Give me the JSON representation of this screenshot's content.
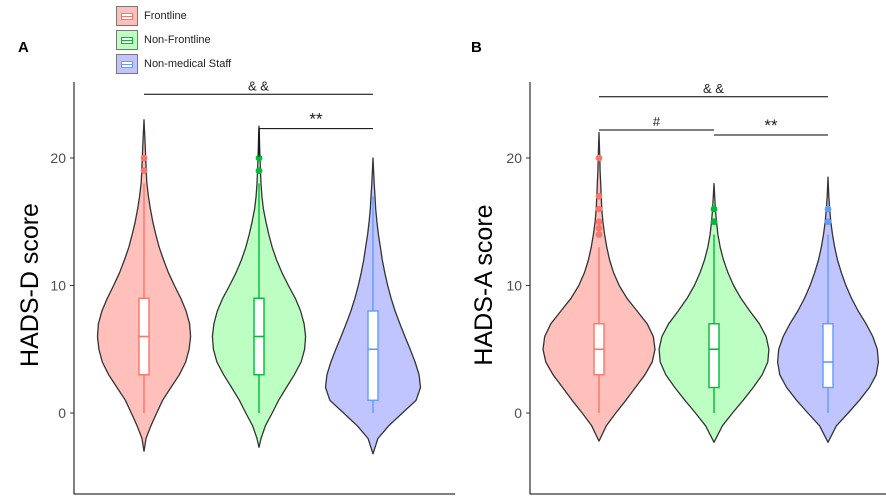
{
  "legend": {
    "items": [
      {
        "label": "Frontline",
        "color": "#F8766D",
        "fill": "#FFBFBB"
      },
      {
        "label": "Non-Frontline",
        "color": "#00BA38",
        "fill": "#BDFFC2"
      },
      {
        "label": "Non-medical Staff",
        "color": "#619CFF",
        "fill": "#C0C4FF"
      }
    ]
  },
  "chart_data": [
    {
      "type": "violin",
      "panel_label": "A",
      "ylabel": "HADS-D score",
      "yticks": [
        0,
        10,
        20
      ],
      "ylim": [
        -6.5,
        26.5
      ],
      "groups": [
        {
          "name": "Frontline",
          "color": "#F8766D",
          "fill": "#FFBFBB",
          "range": [
            -3,
            23
          ],
          "profile": [
            [
              -3,
              0
            ],
            [
              -2,
              0.04
            ],
            [
              -1,
              0.14
            ],
            [
              0,
              0.26
            ],
            [
              1,
              0.38
            ],
            [
              2,
              0.55
            ],
            [
              3,
              0.72
            ],
            [
              4,
              0.85
            ],
            [
              5,
              0.92
            ],
            [
              6,
              0.95
            ],
            [
              7,
              0.93
            ],
            [
              8,
              0.86
            ],
            [
              9,
              0.75
            ],
            [
              10,
              0.62
            ],
            [
              11,
              0.5
            ],
            [
              12,
              0.4
            ],
            [
              13,
              0.31
            ],
            [
              14,
              0.24
            ],
            [
              15,
              0.18
            ],
            [
              16,
              0.13
            ],
            [
              17,
              0.09
            ],
            [
              18,
              0.06
            ],
            [
              19,
              0.045
            ],
            [
              20,
              0.035
            ],
            [
              21,
              0.025
            ],
            [
              22,
              0.012
            ],
            [
              23,
              0
            ]
          ],
          "box": {
            "min": 0,
            "q1": 3,
            "median": 6,
            "q3": 9,
            "max": 18
          },
          "outliers": [
            19,
            20
          ]
        },
        {
          "name": "Non-Frontline",
          "color": "#00BA38",
          "fill": "#BDFFC2",
          "range": [
            -2.7,
            22.5
          ],
          "profile": [
            [
              -2.7,
              0
            ],
            [
              -2,
              0.04
            ],
            [
              -1,
              0.13
            ],
            [
              0,
              0.27
            ],
            [
              1,
              0.4
            ],
            [
              2,
              0.56
            ],
            [
              3,
              0.72
            ],
            [
              4,
              0.86
            ],
            [
              5,
              0.93
            ],
            [
              6,
              0.95
            ],
            [
              7,
              0.92
            ],
            [
              8,
              0.85
            ],
            [
              9,
              0.74
            ],
            [
              10,
              0.6
            ],
            [
              11,
              0.47
            ],
            [
              12,
              0.36
            ],
            [
              13,
              0.27
            ],
            [
              14,
              0.2
            ],
            [
              15,
              0.14
            ],
            [
              16,
              0.09
            ],
            [
              17,
              0.06
            ],
            [
              18,
              0.04
            ],
            [
              19,
              0.03
            ],
            [
              20,
              0.02
            ],
            [
              21,
              0.012
            ],
            [
              22,
              0.006
            ],
            [
              22.5,
              0
            ]
          ],
          "box": {
            "min": 0,
            "q1": 3,
            "median": 6,
            "q3": 9,
            "max": 18
          },
          "outliers": [
            19,
            20
          ]
        },
        {
          "name": "Non-medical Staff",
          "color": "#619CFF",
          "fill": "#C0C4FF",
          "range": [
            -3.2,
            20
          ],
          "profile": [
            [
              -3.2,
              0
            ],
            [
              -2,
              0.1
            ],
            [
              -1,
              0.32
            ],
            [
              0,
              0.6
            ],
            [
              1,
              0.88
            ],
            [
              2,
              0.97
            ],
            [
              3,
              0.94
            ],
            [
              4,
              0.86
            ],
            [
              5,
              0.76
            ],
            [
              6,
              0.65
            ],
            [
              7,
              0.55
            ],
            [
              8,
              0.45
            ],
            [
              9,
              0.37
            ],
            [
              10,
              0.3
            ],
            [
              11,
              0.24
            ],
            [
              12,
              0.19
            ],
            [
              13,
              0.15
            ],
            [
              14,
              0.11
            ],
            [
              15,
              0.08
            ],
            [
              16,
              0.055
            ],
            [
              17,
              0.04
            ],
            [
              18,
              0.025
            ],
            [
              19,
              0.012
            ],
            [
              20,
              0
            ]
          ],
          "box": {
            "min": 0,
            "q1": 1,
            "median": 5,
            "q3": 8,
            "max": 17
          },
          "outliers": []
        }
      ],
      "annotations": [
        {
          "text": "& &",
          "from": 0,
          "to": 2,
          "y": 25,
          "drop": 0,
          "size": 13
        },
        {
          "text": "**",
          "from": 1,
          "to": 2,
          "y": 22.3,
          "drop": 2.2,
          "size": 17
        }
      ]
    },
    {
      "type": "violin",
      "panel_label": "B",
      "ylabel": "HADS-A score",
      "yticks": [
        0,
        10,
        20
      ],
      "ylim": [
        -6.5,
        26.5
      ],
      "groups": [
        {
          "name": "Frontline",
          "color": "#F8766D",
          "fill": "#FFBFBB",
          "range": [
            -2.2,
            22
          ],
          "profile": [
            [
              -2.2,
              0
            ],
            [
              -1,
              0.13
            ],
            [
              0,
              0.3
            ],
            [
              1,
              0.48
            ],
            [
              2,
              0.65
            ],
            [
              3,
              0.82
            ],
            [
              4,
              0.95
            ],
            [
              5,
              1.0
            ],
            [
              6,
              0.97
            ],
            [
              7,
              0.86
            ],
            [
              8,
              0.68
            ],
            [
              9,
              0.5
            ],
            [
              10,
              0.36
            ],
            [
              11,
              0.26
            ],
            [
              12,
              0.19
            ],
            [
              13,
              0.14
            ],
            [
              14,
              0.1
            ],
            [
              15,
              0.07
            ],
            [
              16,
              0.05
            ],
            [
              17,
              0.04
            ],
            [
              18,
              0.03
            ],
            [
              19,
              0.02
            ],
            [
              20,
              0.015
            ],
            [
              21,
              0.008
            ],
            [
              22,
              0
            ]
          ],
          "box": {
            "min": 0,
            "q1": 3,
            "median": 5,
            "q3": 7,
            "max": 13
          },
          "outliers": [
            14,
            14.5,
            15,
            16,
            17,
            20
          ]
        },
        {
          "name": "Non-Frontline",
          "color": "#00BA38",
          "fill": "#BDFFC2",
          "range": [
            -2.3,
            18
          ],
          "profile": [
            [
              -2.3,
              0
            ],
            [
              -1,
              0.15
            ],
            [
              0,
              0.33
            ],
            [
              1,
              0.52
            ],
            [
              2,
              0.7
            ],
            [
              3,
              0.86
            ],
            [
              4,
              0.96
            ],
            [
              5,
              0.98
            ],
            [
              6,
              0.93
            ],
            [
              7,
              0.81
            ],
            [
              8,
              0.64
            ],
            [
              9,
              0.48
            ],
            [
              10,
              0.35
            ],
            [
              11,
              0.25
            ],
            [
              12,
              0.17
            ],
            [
              13,
              0.11
            ],
            [
              14,
              0.07
            ],
            [
              15,
              0.045
            ],
            [
              16,
              0.025
            ],
            [
              17,
              0.012
            ],
            [
              18,
              0
            ]
          ],
          "box": {
            "min": 0,
            "q1": 2,
            "median": 5,
            "q3": 7,
            "max": 14
          },
          "outliers": [
            15,
            16
          ]
        },
        {
          "name": "Non-medical Staff",
          "color": "#619CFF",
          "fill": "#C0C4FF",
          "range": [
            -2.3,
            18.5
          ],
          "profile": [
            [
              -2.3,
              0
            ],
            [
              -1,
              0.15
            ],
            [
              0,
              0.36
            ],
            [
              1,
              0.56
            ],
            [
              2,
              0.74
            ],
            [
              3,
              0.86
            ],
            [
              4,
              0.9
            ],
            [
              5,
              0.88
            ],
            [
              6,
              0.8
            ],
            [
              7,
              0.68
            ],
            [
              8,
              0.54
            ],
            [
              9,
              0.42
            ],
            [
              10,
              0.32
            ],
            [
              11,
              0.24
            ],
            [
              12,
              0.17
            ],
            [
              13,
              0.12
            ],
            [
              14,
              0.08
            ],
            [
              15,
              0.05
            ],
            [
              16,
              0.03
            ],
            [
              17,
              0.015
            ],
            [
              18.5,
              0
            ]
          ],
          "box": {
            "min": 0,
            "q1": 2,
            "median": 4,
            "q3": 7,
            "max": 14
          },
          "outliers": [
            15,
            16
          ]
        }
      ],
      "annotations": [
        {
          "text": "& &",
          "from": 0,
          "to": 2,
          "y": 24.8,
          "drop": 0,
          "size": 13
        },
        {
          "text": "#",
          "from": 0,
          "to": 1,
          "y": 22.2,
          "drop": 0,
          "size": 13
        },
        {
          "text": "**",
          "from": 1,
          "to": 2,
          "y": 21.8,
          "drop": 0,
          "size": 17
        }
      ]
    }
  ]
}
